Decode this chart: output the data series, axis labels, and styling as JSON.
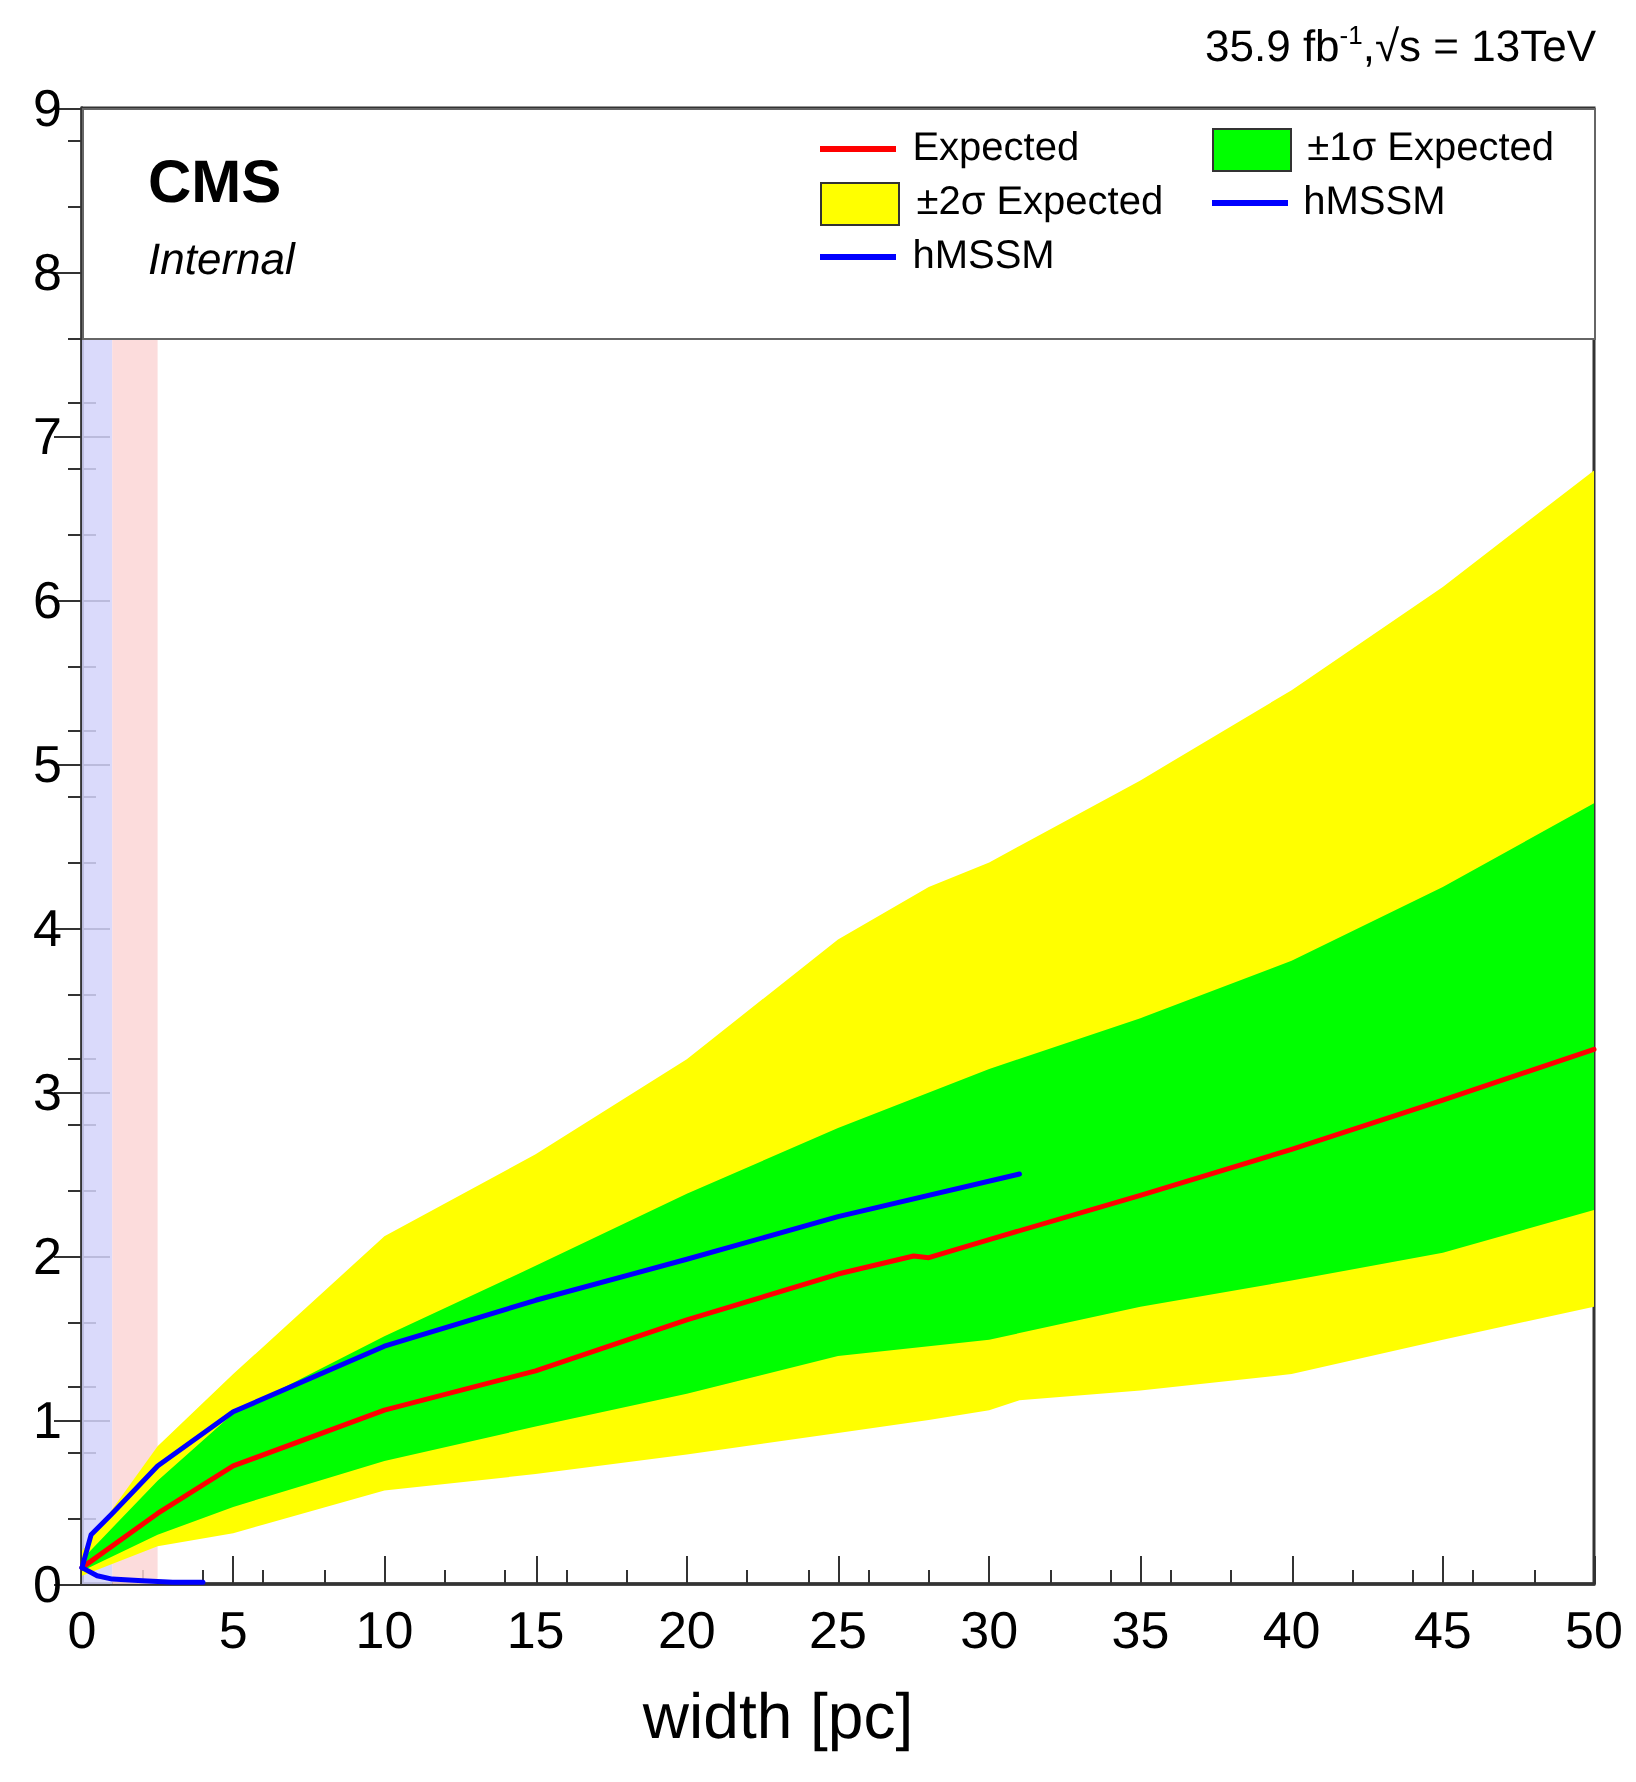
{
  "chart_data": {
    "type": "line",
    "title": "CMS",
    "subtitle": "Internal",
    "xlabel": "width [pc]",
    "annotations": [
      "35.9 fb$^{-1}$,√s = 13TeV"
    ],
    "xlim": [
      0,
      50
    ],
    "xticks": [
      0,
      5,
      10,
      15,
      20,
      25,
      30,
      35,
      40,
      45,
      50
    ],
    "ylim": [
      0,
      9
    ],
    "yticks": [
      0,
      1,
      2,
      3,
      4,
      5,
      6,
      7,
      8,
      9
    ],
    "grid": false,
    "legend": "top right",
    "marker": "none",
    "bands": [
      {
        "axis": "x",
        "from": 0,
        "to": 1,
        "color": "#d4d4fa"
      },
      {
        "axis": "x",
        "from": 1,
        "to": 2.5,
        "color": "#fcd6d6"
      }
    ],
    "series": [
      {
        "name": "Expected",
        "color": "#ff0000",
        "x": [
          0,
          2.5,
          5,
          10,
          15,
          20,
          25,
          27.5,
          28,
          30,
          35,
          40,
          45,
          50
        ],
        "values": [
          0.1,
          0.43,
          0.72,
          1.06,
          1.3,
          1.61,
          1.89,
          2.0,
          1.99,
          2.1,
          2.37,
          2.65,
          2.95,
          3.26
        ]
      },
      {
        "name": "±1σ Expected",
        "color": "#00ff00",
        "x": [
          0,
          2.5,
          5,
          10,
          15,
          20,
          25,
          30,
          35,
          40,
          45,
          50
        ],
        "values": [
          null,
          null,
          null,
          null,
          null,
          null,
          null,
          null,
          null,
          null,
          null,
          null
        ],
        "upper": [
          0.15,
          0.63,
          1.04,
          1.51,
          1.94,
          2.38,
          2.78,
          3.14,
          3.45,
          3.8,
          4.25,
          4.76
        ],
        "lower": [
          0.08,
          0.3,
          0.47,
          0.75,
          0.96,
          1.16,
          1.39,
          1.49,
          1.69,
          1.85,
          2.02,
          2.28
        ]
      },
      {
        "name": "±2σ Expected",
        "color": "#ffff00",
        "x": [
          0,
          2.5,
          5,
          10,
          15,
          20,
          25,
          28,
          30,
          31,
          35,
          40,
          45,
          50
        ],
        "values": [
          null,
          null,
          null,
          null,
          null,
          null,
          null,
          null,
          null,
          null,
          null,
          null,
          null,
          null
        ],
        "upper": [
          0.2,
          0.84,
          1.28,
          2.12,
          2.62,
          3.2,
          3.93,
          4.25,
          4.4,
          4.5,
          4.9,
          5.45,
          6.08,
          6.79
        ],
        "lower": [
          0.05,
          0.23,
          0.31,
          0.57,
          0.67,
          0.79,
          0.92,
          1.0,
          1.06,
          1.12,
          1.18,
          1.28,
          1.49,
          1.69
        ]
      },
      {
        "name": "hMSSM",
        "color": "#0000ff",
        "x": [
          0,
          0.3,
          1,
          2.5,
          5,
          10,
          15,
          20,
          25,
          31
        ],
        "values": [
          0.1,
          0.3,
          0.43,
          0.72,
          1.05,
          1.45,
          1.73,
          1.98,
          2.24,
          2.5
        ]
      },
      {
        "name": "hMSSM",
        "color": "#0000ff",
        "x": [
          0,
          0.5,
          1,
          2,
          3,
          4
        ],
        "values": [
          0.1,
          0.05,
          0.03,
          0.02,
          0.01,
          0.01
        ]
      }
    ]
  }
}
